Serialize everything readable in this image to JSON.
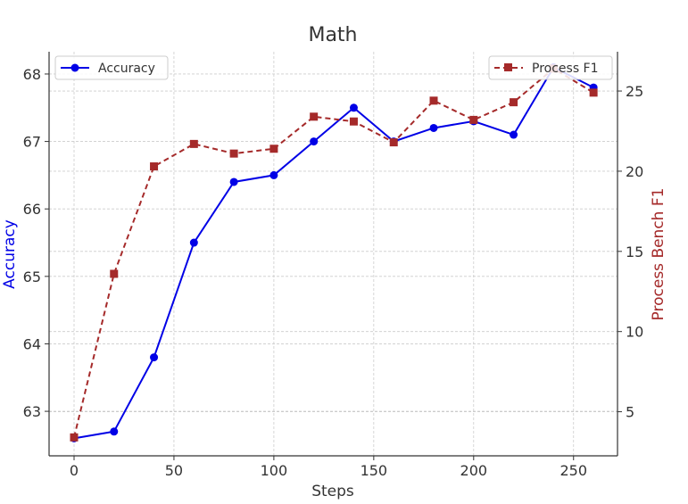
{
  "chart_data": {
    "type": "line",
    "title": "Math",
    "xlabel": "Steps",
    "ylabel": "Accuracy",
    "y2label": "Process Bench F1",
    "x": [
      0,
      20,
      40,
      60,
      80,
      100,
      120,
      140,
      160,
      180,
      200,
      220,
      240,
      260
    ],
    "xlim": [
      -12.5,
      272
    ],
    "ylim": [
      62.34,
      68.33
    ],
    "y2lim": [
      2.25,
      27.45
    ],
    "xticks": [
      0,
      50,
      100,
      150,
      200,
      250
    ],
    "yticks": [
      63,
      64,
      65,
      66,
      67,
      68
    ],
    "y2ticks": [
      5,
      10,
      15,
      20,
      25
    ],
    "grid": true,
    "series": [
      {
        "name": "Accuracy",
        "axis": "left",
        "color": "#0000e6",
        "marker": "circle",
        "linestyle": "solid",
        "values": [
          62.6,
          62.7,
          63.8,
          65.5,
          66.4,
          66.5,
          67.0,
          67.5,
          67.0,
          67.2,
          67.3,
          67.1,
          68.1,
          67.8
        ],
        "legend": "top-left"
      },
      {
        "name": "Process F1",
        "axis": "right",
        "color": "#a52a2a",
        "marker": "square",
        "linestyle": "dashed",
        "values": [
          3.4,
          13.6,
          20.3,
          21.7,
          21.1,
          21.4,
          23.4,
          23.1,
          21.8,
          24.4,
          23.2,
          24.3,
          26.4,
          24.9
        ],
        "legend": "top-right"
      }
    ]
  }
}
